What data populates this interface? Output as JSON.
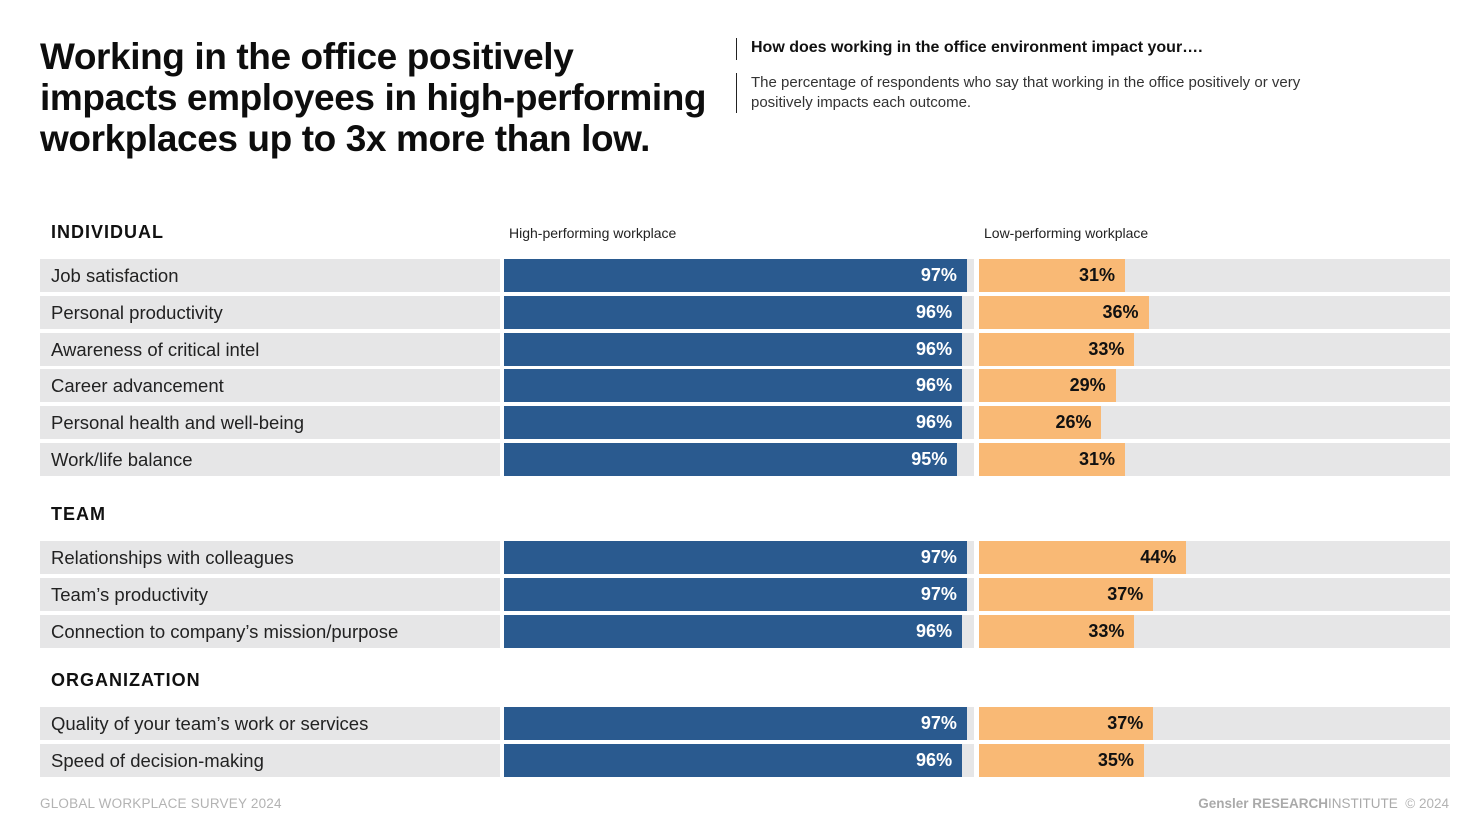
{
  "title": "Working in the office positively impacts employees in high-performing workplaces up to 3x more than low.",
  "question": "How does working in the office environment impact your….",
  "description": "The percentage of respondents who say that working in the office positively or very positively impacts each outcome.",
  "colors": {
    "high": "#2a5a8f",
    "low": "#f9b975",
    "track": "#e6e6e7"
  },
  "chart_data": {
    "type": "bar",
    "orientation": "horizontal",
    "unit": "%",
    "xlim": [
      0,
      100
    ],
    "series_names": [
      "High-performing workplace",
      "Low-performing workplace"
    ],
    "groups": [
      {
        "name": "INDIVIDUAL",
        "rows": [
          {
            "label": "Job satisfaction",
            "high": 97,
            "low": 31
          },
          {
            "label": "Personal productivity",
            "high": 96,
            "low": 36
          },
          {
            "label": "Awareness of critical intel",
            "high": 96,
            "low": 33
          },
          {
            "label": "Career advancement",
            "high": 96,
            "low": 29
          },
          {
            "label": "Personal health and well-being",
            "high": 96,
            "low": 26
          },
          {
            "label": "Work/life balance",
            "high": 95,
            "low": 31
          }
        ]
      },
      {
        "name": "TEAM",
        "rows": [
          {
            "label": "Relationships with colleagues",
            "high": 97,
            "low": 44
          },
          {
            "label": "Team’s productivity",
            "high": 97,
            "low": 37
          },
          {
            "label": "Connection to company’s mission/purpose",
            "high": 96,
            "low": 33
          }
        ]
      },
      {
        "name": "ORGANIZATION",
        "rows": [
          {
            "label": "Quality of your team’s work or services",
            "high": 97,
            "low": 37
          },
          {
            "label": "Speed of decision-making",
            "high": 96,
            "low": 35
          }
        ]
      }
    ]
  },
  "footer": {
    "survey": "GLOBAL WORKPLACE SURVEY 2024",
    "brand": "Gensler",
    "research": "RESEARCH",
    "institute": "INSTITUTE",
    "copyright": "© 2024"
  }
}
